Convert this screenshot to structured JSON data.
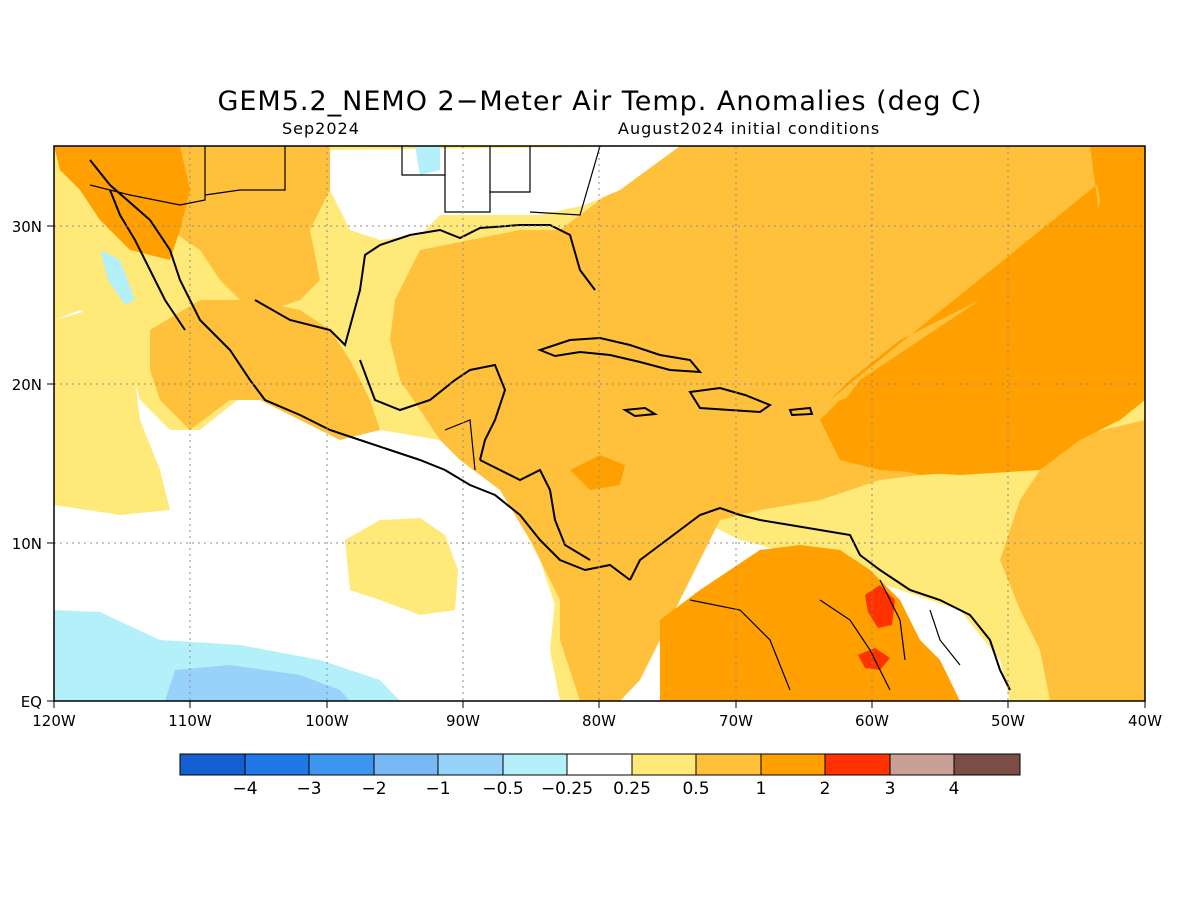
{
  "title": "GEM5.2_NEMO 2−Meter Air Temp. Anomalies (deg C)",
  "subtitle_left": "Sep2024",
  "subtitle_right": "August2024 initial conditions",
  "map": {
    "lon_range": [
      -120,
      -40
    ],
    "lat_range": [
      0,
      35
    ],
    "x_ticks": [
      {
        "lon": -120,
        "label": "120W"
      },
      {
        "lon": -110,
        "label": "110W"
      },
      {
        "lon": -100,
        "label": "100W"
      },
      {
        "lon": -90,
        "label": "90W"
      },
      {
        "lon": -80,
        "label": "80W"
      },
      {
        "lon": -70,
        "label": "70W"
      },
      {
        "lon": -60,
        "label": "60W"
      },
      {
        "lon": -50,
        "label": "50W"
      },
      {
        "lon": -40,
        "label": "40W"
      }
    ],
    "y_ticks": [
      {
        "lat": 0,
        "label": "EQ"
      },
      {
        "lat": 10,
        "label": "10N"
      },
      {
        "lat": 20,
        "label": "20N"
      },
      {
        "lat": 30,
        "label": "30N"
      }
    ]
  },
  "colorbar": {
    "colors": [
      "#1460d2",
      "#2078e6",
      "#3c96f0",
      "#78b9f5",
      "#96d2fa",
      "#b4f0fa",
      "#ffffff",
      "#ffe978",
      "#ffc03c",
      "#ffa000",
      "#ff3200",
      "#c8a096",
      "#7a4e46"
    ],
    "labels": [
      "−4",
      "−3",
      "−2",
      "−1",
      "−0.5",
      "−0.25",
      "0.25",
      "0.5",
      "1",
      "2",
      "3",
      "4"
    ]
  }
}
